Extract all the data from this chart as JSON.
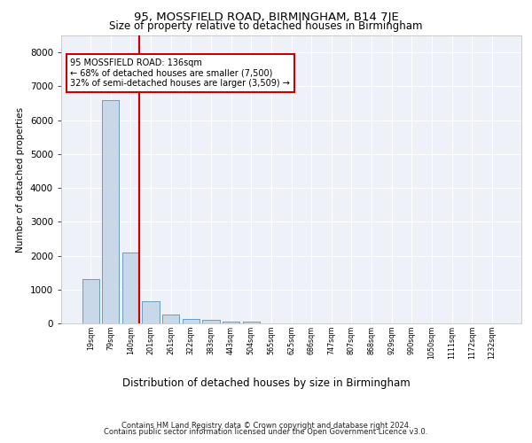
{
  "title_line1": "95, MOSSFIELD ROAD, BIRMINGHAM, B14 7JE",
  "title_line2": "Size of property relative to detached houses in Birmingham",
  "xlabel": "Distribution of detached houses by size in Birmingham",
  "ylabel": "Number of detached properties",
  "footer_line1": "Contains HM Land Registry data © Crown copyright and database right 2024.",
  "footer_line2": "Contains public sector information licensed under the Open Government Licence v3.0.",
  "annotation_title": "95 MOSSFIELD ROAD: 136sqm",
  "annotation_line2": "← 68% of detached houses are smaller (7,500)",
  "annotation_line3": "32% of semi-detached houses are larger (3,509) →",
  "bar_categories": [
    "19sqm",
    "79sqm",
    "140sqm",
    "201sqm",
    "261sqm",
    "322sqm",
    "383sqm",
    "443sqm",
    "504sqm",
    "565sqm",
    "625sqm",
    "686sqm",
    "747sqm",
    "807sqm",
    "868sqm",
    "929sqm",
    "990sqm",
    "1050sqm",
    "1111sqm",
    "1172sqm",
    "1232sqm"
  ],
  "bar_values": [
    1300,
    6600,
    2100,
    650,
    250,
    130,
    100,
    65,
    65,
    0,
    0,
    0,
    0,
    0,
    0,
    0,
    0,
    0,
    0,
    0,
    0
  ],
  "bar_color": "#c8d8e8",
  "bar_edge_color": "#6699bb",
  "vline_x_index": 2,
  "vline_color": "#cc0000",
  "annotation_box_color": "#cc0000",
  "background_color": "#eef2f8",
  "grid_color": "#ffffff",
  "ylim": [
    0,
    8500
  ],
  "yticks": [
    0,
    1000,
    2000,
    3000,
    4000,
    5000,
    6000,
    7000,
    8000
  ]
}
